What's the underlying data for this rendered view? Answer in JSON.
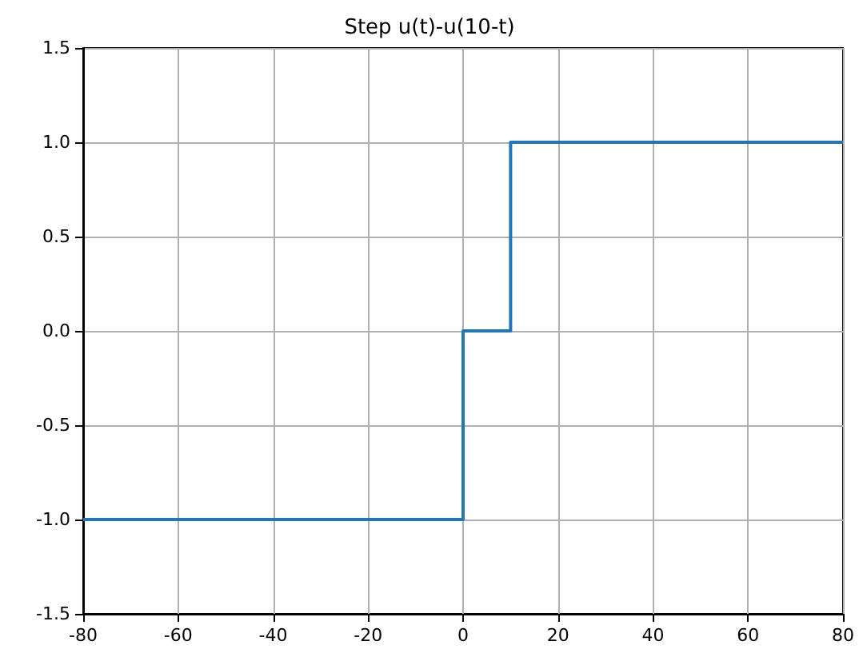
{
  "chart_data": {
    "type": "step",
    "title": "Step u(t)-u(10-t)",
    "x": [
      -80,
      0,
      10,
      80
    ],
    "series": [
      {
        "color": "#1f77b4",
        "values": [
          -1,
          0,
          1,
          1
        ]
      }
    ],
    "xlim": [
      -80,
      80
    ],
    "xticks": [
      -80,
      -60,
      -40,
      -20,
      0,
      20,
      40,
      60,
      80
    ],
    "ylim": [
      -1.5,
      1.5
    ],
    "yticks": [
      -1.5,
      {
        "value": -1,
        "label": "-1.0"
      },
      -0.5,
      {
        "value": 0,
        "label": "0.0"
      },
      0.5,
      {
        "value": 1,
        "label": "1.0"
      },
      1.5
    ],
    "grid": true
  }
}
